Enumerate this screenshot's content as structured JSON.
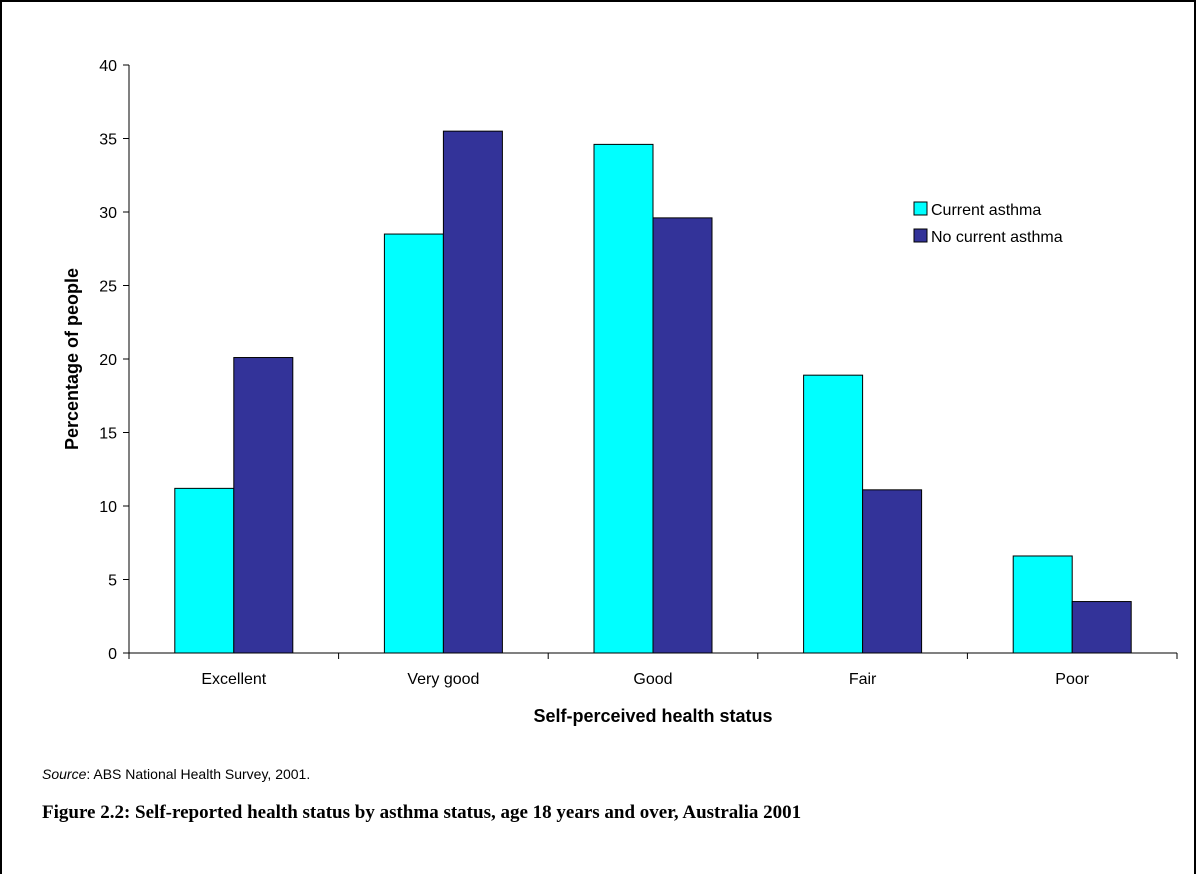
{
  "chart_data": {
    "type": "bar",
    "categories": [
      "Excellent",
      "Very good",
      "Good",
      "Fair",
      "Poor"
    ],
    "series": [
      {
        "name": "Current asthma",
        "color": "#00FFFF",
        "values": [
          11.2,
          28.5,
          34.6,
          18.9,
          6.6
        ]
      },
      {
        "name": "No current asthma",
        "color": "#333399",
        "values": [
          20.1,
          35.5,
          29.6,
          11.1,
          3.5
        ]
      }
    ],
    "xlabel": "Self-perceived health status",
    "ylabel": "Percentage of people",
    "ylim": [
      0,
      40
    ],
    "yticks": [
      0,
      5,
      10,
      15,
      20,
      25,
      30,
      35,
      40
    ],
    "grid": false,
    "legend_position": "right"
  },
  "source": {
    "label": "Source",
    "text": ": ABS National Health Survey, 2001."
  },
  "caption": "Figure 2.2: Self-reported health status by asthma status, age 18 years and over, Australia 2001"
}
